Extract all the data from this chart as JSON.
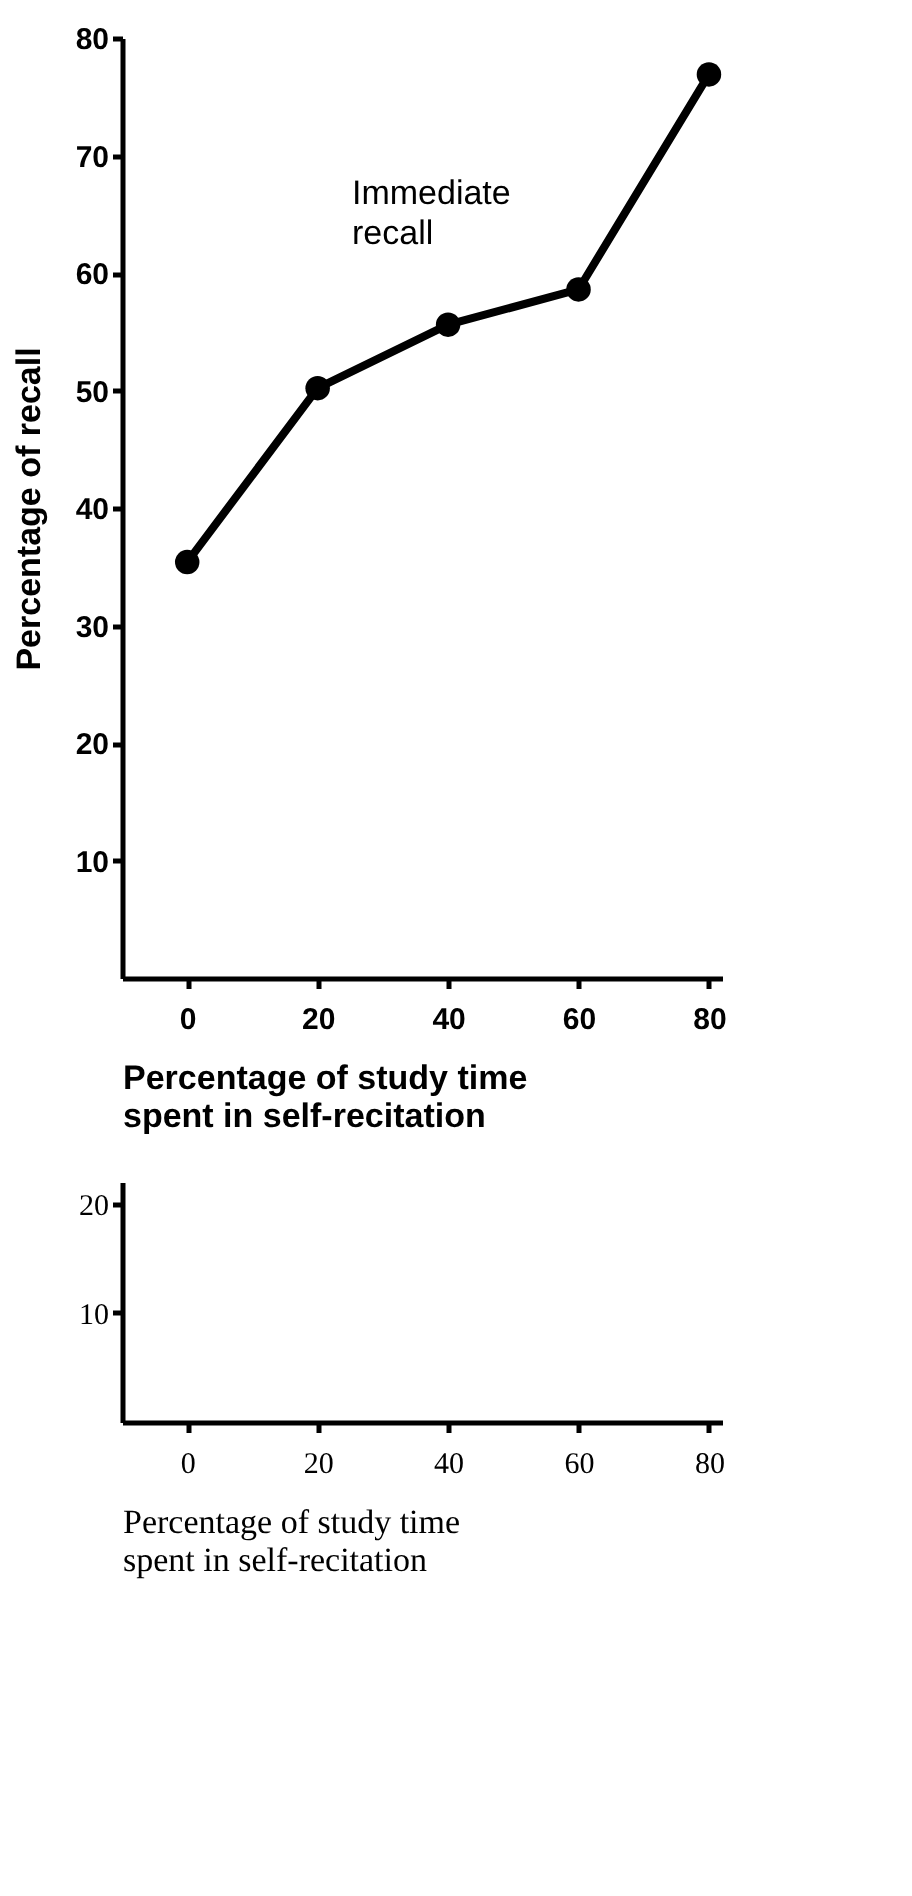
{
  "chart_data": [
    {
      "type": "line",
      "x": [
        0,
        20,
        40,
        60,
        80
      ],
      "xlim": [
        -10,
        82
      ],
      "xticks": [
        0,
        20,
        40,
        60,
        80
      ],
      "ylim": [
        0,
        80
      ],
      "yticks": [
        10,
        20,
        30,
        40,
        50,
        60,
        70,
        80
      ],
      "xlabel": "Percentage of study time spent in self-recitation",
      "ylabel": "Percentage of recall",
      "marker": "circle",
      "grid": false,
      "series": [
        {
          "name": "Immediate recall",
          "color": "#000000",
          "values": [
            35.4,
            50.2,
            55.6,
            58.6,
            76.9
          ]
        }
      ]
    },
    {
      "type": "line",
      "xlim": [
        -10,
        82
      ],
      "xticks": [
        0,
        20,
        40,
        60,
        80
      ],
      "ylim": [
        0,
        22
      ],
      "yticks": [
        10,
        20
      ],
      "xlabel": "Percentage of study time spent in self-recitation",
      "grid": false
    }
  ]
}
